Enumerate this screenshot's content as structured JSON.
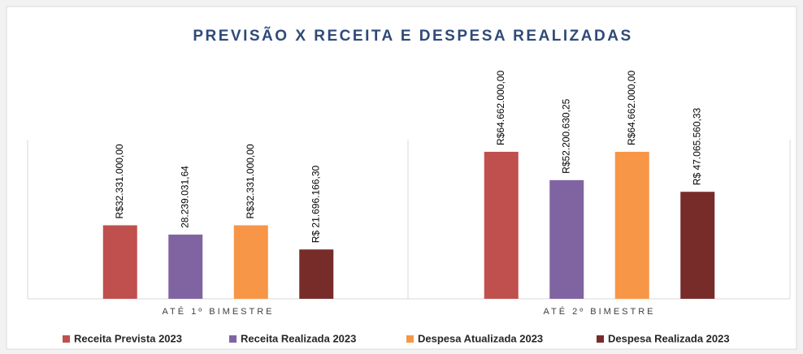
{
  "chart_data": {
    "type": "bar",
    "title": "PREVISÃO X RECEITA E DESPESA REALIZADAS",
    "categories": [
      "ATÉ 1º BIMESTRE",
      "ATÉ 2º BIMESTRE"
    ],
    "ylim": [
      0,
      70000000
    ],
    "series": [
      {
        "name": "Receita Prevista 2023",
        "color": "#c0504d",
        "values": [
          32331000,
          64662000
        ],
        "value_labels": [
          "R$32.331.000,00",
          "R$64.662.000,00"
        ]
      },
      {
        "name": "Receita Realizada 2023",
        "color": "#8064a2",
        "values": [
          28239031.64,
          52200630.25
        ],
        "value_labels": [
          "28.239.031,64",
          "R$52.200.630,25"
        ]
      },
      {
        "name": "Despesa Atualizada 2023",
        "color": "#f79646",
        "values": [
          32331000,
          64662000
        ],
        "value_labels": [
          "R$32.331.000,00",
          "R$64.662.000,00"
        ]
      },
      {
        "name": "Despesa Realizada 2023",
        "color": "#772c2a",
        "values": [
          21696166.3,
          47065560.33
        ],
        "value_labels": [
          "R$ 21.696.166,30",
          "R$ 47.065.560,33"
        ]
      }
    ],
    "legend": "bottom"
  }
}
